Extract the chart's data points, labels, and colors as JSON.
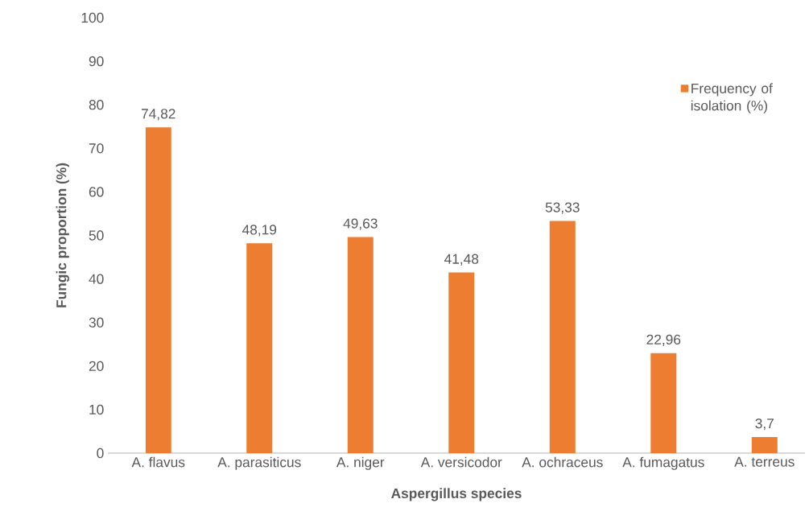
{
  "chart_data": {
    "type": "bar",
    "xlabel": "Aspergillus species",
    "ylabel": "Fungic proportion (%)",
    "categories": [
      "A. flavus",
      "A. parasiticus",
      "A. niger",
      "A. versicodor",
      "A. ochraceus",
      "A. fumagatus",
      "A. terreus"
    ],
    "series": [
      {
        "name": "Frequency of isolation (%)",
        "color": "#ed7d31",
        "values": [
          74.82,
          48.19,
          49.63,
          41.48,
          53.33,
          22.96,
          3.7
        ],
        "value_labels": [
          "74,82",
          "48,19",
          "49,63",
          "41,48",
          "53,33",
          "22,96",
          "3,7"
        ]
      }
    ],
    "ylim": [
      0,
      100
    ],
    "yticks": [
      0,
      10,
      20,
      30,
      40,
      50,
      60,
      70,
      80,
      90,
      100
    ],
    "grid": false,
    "legend": "top right"
  }
}
